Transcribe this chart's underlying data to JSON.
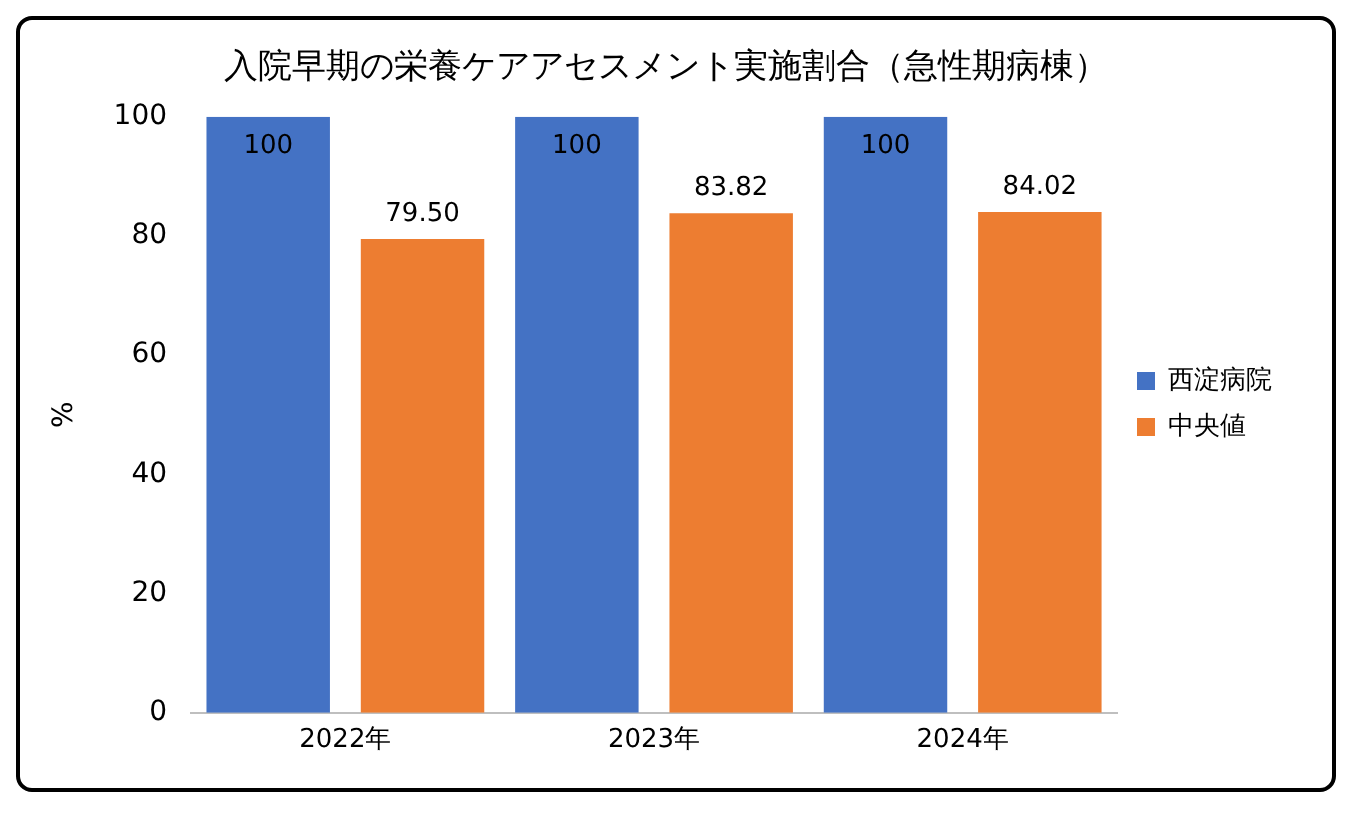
{
  "chart_data": {
    "type": "bar",
    "title": "入院早期の栄養ケアアセスメント実施割合（急性期病棟）",
    "ylabel": "%",
    "categories": [
      "2022年",
      "2023年",
      "2024年"
    ],
    "series": [
      {
        "name": "西淀病院",
        "color": "#4472c4",
        "values": [
          100,
          100,
          100
        ],
        "value_labels": [
          "100",
          "100",
          "100"
        ]
      },
      {
        "name": "中央値",
        "color": "#ed7d31",
        "values": [
          79.5,
          83.82,
          84.02
        ],
        "value_labels": [
          "79.50",
          "83.82",
          "84.02"
        ]
      }
    ],
    "ylim": [
      0,
      100
    ],
    "yticks": [
      0,
      20,
      40,
      60,
      80,
      100
    ],
    "grid": false,
    "legend": "right"
  }
}
